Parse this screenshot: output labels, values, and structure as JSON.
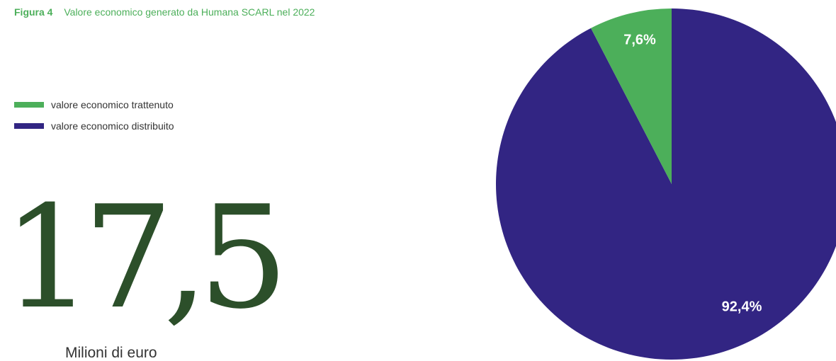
{
  "figure": {
    "label": "Figura 4",
    "title": "Valore economico generato da Humana SCARL nel 2022"
  },
  "legend": [
    {
      "label": "valore economico trattenuto",
      "color": "#4caf5a"
    },
    {
      "label": "valore economico distribuito",
      "color": "#322583"
    }
  ],
  "highlight": {
    "value": "17,5",
    "unit": "Milioni di euro"
  },
  "colors": {
    "accent_green": "#4caf5a",
    "dark_green": "#2c4f2a",
    "navy": "#322583"
  },
  "chart_data": {
    "type": "pie",
    "title": "Valore economico generato da Humana SCARL nel 2022",
    "slices": [
      {
        "name": "valore economico trattenuto",
        "value": 7.6,
        "label": "7,6%",
        "color": "#4caf5a"
      },
      {
        "name": "valore economico distribuito",
        "value": 92.4,
        "label": "92,4%",
        "color": "#322583"
      }
    ],
    "total_display": "17,5",
    "total_unit": "Milioni di euro",
    "legend_position": "left"
  }
}
